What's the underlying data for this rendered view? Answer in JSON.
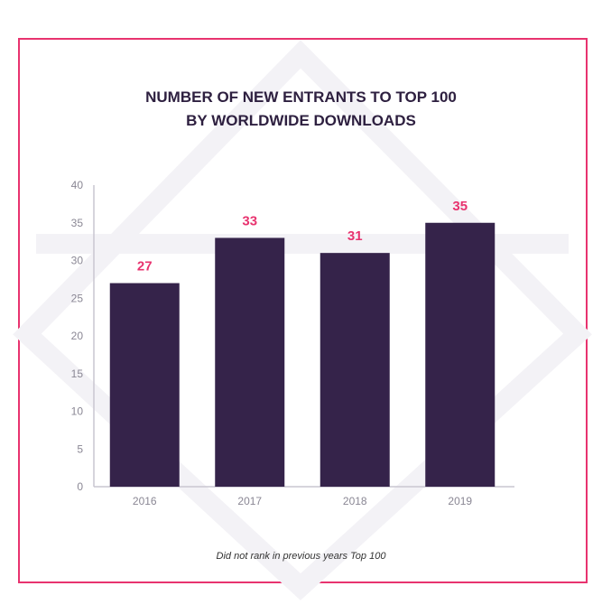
{
  "chart_data": {
    "type": "bar",
    "title_lines": [
      "NUMBER OF NEW ENTRANTS TO TOP 100",
      "BY WORLDWIDE DOWNLOADS"
    ],
    "categories": [
      "2016",
      "2017",
      "2018",
      "2019"
    ],
    "values": [
      27,
      33,
      31,
      35
    ],
    "data_labels": [
      "27",
      "33",
      "31",
      "35"
    ],
    "ylim": [
      0,
      40
    ],
    "yticks": [
      "0",
      "5",
      "10",
      "15",
      "20",
      "25",
      "30",
      "35",
      "40"
    ],
    "xlabel": "",
    "ylabel": "",
    "grid": false,
    "footnote": "Did not rank in previous years Top 100",
    "colors": {
      "bar": "#35234a",
      "label": "#e8336f",
      "frame": "#e8336f"
    }
  }
}
